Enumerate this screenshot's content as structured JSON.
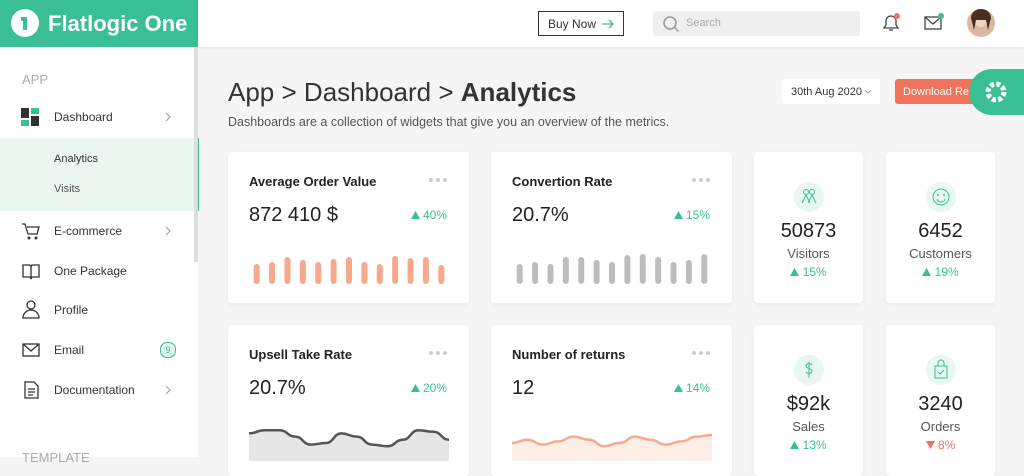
{
  "header": {
    "brand": "Flatlogic One",
    "buy_button": "Buy Now",
    "search_placeholder": "Search"
  },
  "sidebar": {
    "section": "APP",
    "items": [
      {
        "label": "Dashboard"
      },
      {
        "label": "E-commerce"
      },
      {
        "label": "One Package"
      },
      {
        "label": "Profile"
      },
      {
        "label": "Email",
        "badge": 9
      },
      {
        "label": "Documentation"
      }
    ],
    "subitems": [
      "Analytics",
      "Visits"
    ],
    "next_section": "TEMPLATE"
  },
  "page": {
    "breadcrumb": [
      "App",
      "Dashboard",
      "Analytics"
    ],
    "separator": ">",
    "subtitle": "Dashboards are a collection of widgets that give you an overview of the metrics.",
    "date": "30th Aug 2020",
    "download_button": "Download Report"
  },
  "widgets": [
    {
      "title": "Average Order Value",
      "value": "872 410 $",
      "change": "40%",
      "trend": "up",
      "chart": {
        "type": "bar",
        "color": "#f9a98b",
        "values": [
          20,
          22,
          27,
          24,
          22,
          25,
          27,
          22,
          20,
          28,
          26,
          27,
          19
        ]
      }
    },
    {
      "title": "Convertion Rate",
      "value": "20.7%",
      "change": "15%",
      "trend": "up",
      "chart": {
        "type": "bar",
        "color": "#bdbdbd",
        "values": [
          20,
          22,
          20,
          27,
          27,
          24,
          22,
          29,
          30,
          27,
          22,
          24,
          30
        ]
      }
    },
    {
      "title": "Upsell Take Rate",
      "value": "20.7%",
      "change": "20%",
      "trend": "up",
      "chart": {
        "type": "area",
        "color": "#555555",
        "fill": "#e6e6e6",
        "values": [
          16,
          18,
          18,
          14,
          9,
          10,
          16,
          14,
          9,
          8,
          12,
          18,
          17,
          12
        ]
      }
    },
    {
      "title": "Number of returns",
      "value": "12",
      "change": "14%",
      "trend": "up",
      "chart": {
        "type": "area",
        "color": "#f9a98b",
        "fill": "#fdeee7",
        "values": [
          10,
          12,
          9,
          11,
          14,
          12,
          8,
          10,
          14,
          12,
          9,
          11,
          14,
          15
        ]
      }
    }
  ],
  "stats": [
    {
      "value": "50873",
      "label": "Visitors",
      "change": "15%",
      "trend": "up"
    },
    {
      "value": "6452",
      "label": "Customers",
      "change": "19%",
      "trend": "up"
    },
    {
      "value": "$92k",
      "label": "Sales",
      "change": "13%",
      "trend": "up"
    },
    {
      "value": "3240",
      "label": "Orders",
      "change": "8%",
      "trend": "down"
    }
  ]
}
